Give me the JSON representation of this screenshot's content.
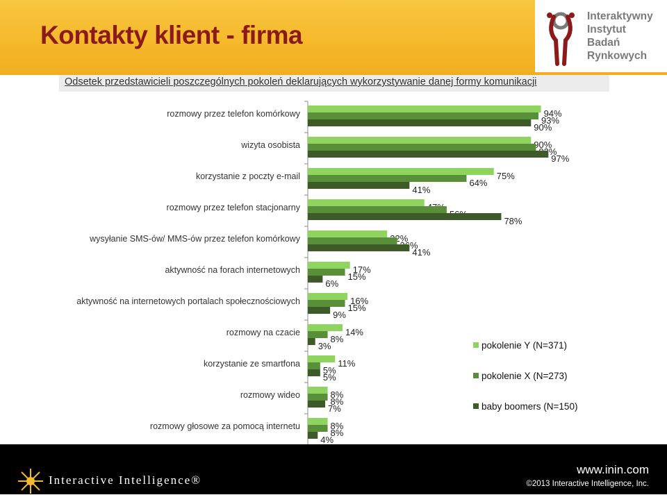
{
  "header": {
    "title": "Kontakty klient - firma",
    "logo_lines": [
      "Interaktywny",
      "Instytut",
      "Badań",
      "Rynkowych"
    ]
  },
  "footer": {
    "brand": "Interactive Intelligence®",
    "url": "www.inin.com",
    "copyright": "©2013 Interactive Intelligence, Inc."
  },
  "colors": {
    "header_bg": "#f5b82a",
    "title": "#8b1a1a",
    "series": [
      "#8fd45f",
      "#5a8f3a",
      "#3d5a28"
    ],
    "footer_bg": "#000000"
  },
  "chart_data": {
    "type": "bar",
    "orientation": "horizontal",
    "title": "Odsetek przedstawicieli poszczególnych pokoleń deklarujących wykorzystywanie danej formy komunikacji",
    "categories": [
      "rozmowy przez telefon komórkowy",
      "wizyta osobista",
      "korzystanie z poczty e-mail",
      "rozmowy przez telefon stacjonarny",
      "wysyłanie SMS-ów/ MMS-ów przez telefon komórkowy",
      "aktywność na forach internetowych",
      "aktywność na internetowych portalach społecznościowych",
      "rozmowy na czacie",
      "korzystanie ze smartfona",
      "rozmowy wideo",
      "rozmowy głosowe za pomocą internetu"
    ],
    "series": [
      {
        "name": "pokolenie Y (N=371)",
        "values": [
          94,
          90,
          75,
          47,
          32,
          17,
          16,
          14,
          11,
          8,
          8
        ]
      },
      {
        "name": "pokolenie X (N=273)",
        "values": [
          93,
          92,
          64,
          56,
          36,
          15,
          15,
          8,
          5,
          8,
          8
        ]
      },
      {
        "name": "baby boomers (N=150)",
        "values": [
          90,
          97,
          41,
          78,
          41,
          6,
          9,
          3,
          5,
          7,
          4
        ]
      }
    ],
    "value_labels": [
      [
        "94%",
        "93%",
        "90%"
      ],
      [
        "90%",
        "92%",
        "97%"
      ],
      [
        "75%",
        "64%",
        "41%"
      ],
      [
        "47%",
        "56%",
        "78%"
      ],
      [
        "32%",
        "36%",
        "41%"
      ],
      [
        "17%",
        "15%",
        "6%"
      ],
      [
        "16%",
        "15%",
        "9%"
      ],
      [
        "14%",
        "8%",
        "3%"
      ],
      [
        "11%",
        "5%",
        "5%"
      ],
      [
        "8%",
        "8%",
        "7%"
      ],
      [
        "8%",
        "8%",
        "4%"
      ]
    ],
    "x_ticks": [
      "0%",
      "20%",
      "40%",
      "60%",
      "80%",
      "100%"
    ],
    "xlim": [
      0,
      100
    ],
    "legend_position": "right",
    "grid": false
  }
}
